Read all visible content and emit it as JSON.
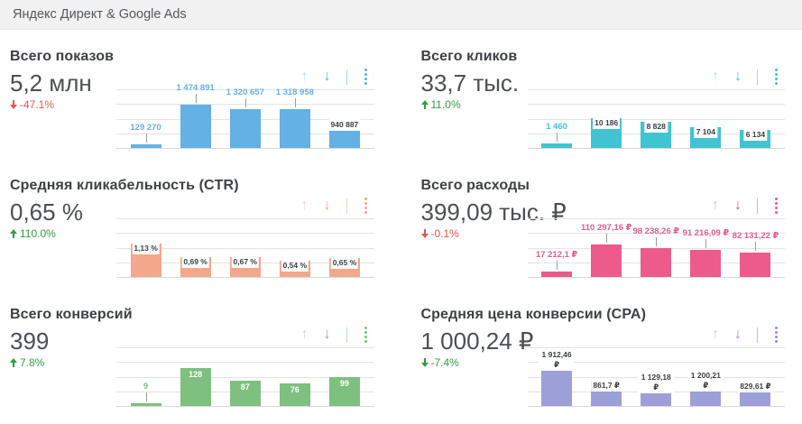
{
  "header": {
    "title": "Яндекс Директ & Google Ads"
  },
  "icons": {
    "sort_up_glyph": "↑",
    "sort_down_glyph": "↓"
  },
  "palette": {
    "delta_positive_green": "#2f9e44",
    "delta_negative_red": "#e8544c",
    "gridline": "#e4e4e4",
    "connector_gray": "#9e9e9e"
  },
  "cards": [
    {
      "title": "Всего показов",
      "value": "5,2 млн",
      "delta": "-47.1%",
      "delta_dir": "down",
      "delta_color": "#e8544c",
      "accent": "#63b1e5",
      "icon_color": "#55b4e0"
    },
    {
      "title": "Всего кликов",
      "value": "33,7 тыс.",
      "delta": "11.0%",
      "delta_dir": "up",
      "delta_color": "#2f9e44",
      "accent": "#40c4d1",
      "icon_color": "#40c4d1"
    },
    {
      "title": "Средняя кликабельность (CTR)",
      "value": "0,65 %",
      "delta": "110.0%",
      "delta_dir": "up",
      "delta_color": "#2f9e44",
      "accent": "#f4a78b",
      "icon_color": "#f4a78b"
    },
    {
      "title": "Всего расходы",
      "value": "399,09 тыс. ₽",
      "delta": "-0.1%",
      "delta_dir": "down",
      "delta_color": "#e8544c",
      "accent": "#ec5b8c",
      "icon_color": "#ec5b8c"
    },
    {
      "title": "Всего конверсий",
      "value": "399",
      "delta": "7.8%",
      "delta_dir": "up",
      "delta_color": "#2f9e44",
      "accent": "#7dc07f",
      "icon_color": "#7dc07f"
    },
    {
      "title": "Средняя цена конверсии (CPA)",
      "value": "1 000,24 ₽",
      "delta": "-7.4%",
      "delta_dir": "down",
      "delta_color": "#2f9e44",
      "accent": "#9c9fd8",
      "icon_color": "#b57fd6"
    }
  ],
  "chart_data": [
    {
      "type": "bar",
      "title": "Всего показов",
      "values": [
        129270,
        1474891,
        1320657,
        1318958,
        940887
      ],
      "labels": [
        "129 270",
        "1 474 891",
        "1 320 657",
        "1 318 958",
        "940 887"
      ],
      "label_styles": [
        "above",
        "above",
        "above",
        "above",
        "box"
      ],
      "ylim": [
        0,
        2000000
      ],
      "gridline_count": 5,
      "grid": "horizontal",
      "legend": "none"
    },
    {
      "type": "bar",
      "title": "Всего кликов",
      "values": [
        1460,
        10186,
        8828,
        7104,
        6134
      ],
      "labels": [
        "1 460",
        "10 186",
        "8 828",
        "7 104",
        "6 134"
      ],
      "label_styles": [
        "above",
        "box",
        "box",
        "box",
        "box"
      ],
      "ylim": [
        0,
        20000
      ],
      "gridline_count": 5,
      "grid": "horizontal",
      "legend": "none"
    },
    {
      "type": "bar",
      "title": "Средняя кликабельность (CTR)",
      "values": [
        1.13,
        0.69,
        0.67,
        0.54,
        0.65
      ],
      "labels": [
        "1,13 %",
        "0,69 %",
        "0,67 %",
        "0,54 %",
        "0,65 %"
      ],
      "label_styles": [
        "box",
        "box",
        "box",
        "box",
        "box"
      ],
      "ylim": [
        0,
        2.0
      ],
      "gridline_count": 5,
      "grid": "horizontal",
      "legend": "none"
    },
    {
      "type": "bar",
      "title": "Всего расходы",
      "values": [
        17212.1,
        110297.16,
        98238.26,
        91216.09,
        82131.22
      ],
      "labels": [
        "17 212,1 ₽",
        "110 297,16 ₽",
        "98 238,26 ₽",
        "91 216,09 ₽",
        "82 131,22 ₽"
      ],
      "label_styles": [
        "above",
        "above",
        "above",
        "above",
        "above"
      ],
      "ylim": [
        0,
        200000
      ],
      "gridline_count": 5,
      "grid": "horizontal",
      "legend": "none"
    },
    {
      "type": "bar",
      "title": "Всего конверсий",
      "values": [
        9,
        128,
        87,
        76,
        99
      ],
      "labels": [
        "9",
        "128",
        "87",
        "76",
        "99"
      ],
      "label_styles": [
        "above",
        "inside",
        "inside",
        "inside",
        "inside"
      ],
      "ylim": [
        0,
        200
      ],
      "gridline_count": 5,
      "grid": "horizontal",
      "legend": "none"
    },
    {
      "type": "bar",
      "title": "Средняя цена конверсии (CPA)",
      "values": [
        1912.46,
        861.7,
        1129.18,
        1200.21,
        829.61
      ],
      "labels": [
        "1 912,46 ₽",
        "861,7 ₽",
        "1 129,18 ₽",
        "1 200,21 ₽",
        "829,61 ₽"
      ],
      "label_styles": [
        "box",
        "box",
        "box",
        "box",
        "box"
      ],
      "ylim": [
        0,
        2000
      ],
      "gridline_count": 5,
      "grid": "horizontal",
      "legend": "none"
    }
  ]
}
